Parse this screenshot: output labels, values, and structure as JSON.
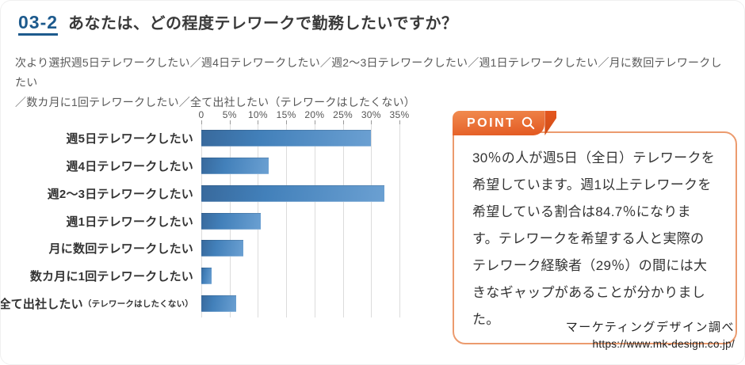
{
  "header": {
    "number_label": "03-2",
    "title": "あなたは、どの程度テレワークで勤務したいですか？",
    "subtitle_lines": [
      "次より選択週5日テレワークしたい／週4日テレワークしたい／週2〜3日テレワークしたい／週1日テレワークしたい／月に数回テレワークしたい",
      "／数カ月に1回テレワークしたい／全て出社したい（テレワークはしたくない）"
    ]
  },
  "chart_data": {
    "type": "bar",
    "orientation": "horizontal",
    "categories": [
      "週5日テレワークしたい",
      "週4日テレワークしたい",
      "週2〜3日テレワークしたい",
      "週1日テレワークしたい",
      "月に数回テレワークしたい",
      "数カ月に1回テレワークしたい",
      "全て出社したい（テレワークはしたくない）"
    ],
    "category_labels": [
      "週5日テレワークしたい",
      "週4日テレワークしたい",
      "週2〜3日テレワークしたい",
      "週1日テレワークしたい",
      "月に数回テレワークしたい",
      "数カ月に1回テレワークしたい",
      "全て出社したい"
    ],
    "last_category_note": "（テレワークはしたくない）",
    "values": [
      30.0,
      11.9,
      32.3,
      10.5,
      7.4,
      1.8,
      6.1
    ],
    "x_ticks": [
      "0",
      "5%",
      "10%",
      "15%",
      "20%",
      "25%",
      "30%",
      "35%"
    ],
    "xlim": [
      0,
      35
    ],
    "grid": true,
    "bar_color_start": "#38699c",
    "bar_color_end": "#6ba0d2",
    "title": "",
    "xlabel": "",
    "ylabel": ""
  },
  "point": {
    "label": "POINT",
    "icon": "magnifier-icon",
    "lines": [
      "30％の人が週5日（全日）テレワークを",
      "希望しています。週1以上テレワークを",
      "希望している割合は84.7％になりま",
      "す。テレワークを希望する人と実際の",
      "テレワーク経験者（29％）の間には大",
      "きなギャップがあることが分かりました。"
    ]
  },
  "source": {
    "credit": "マーケティングデザイン調べ",
    "url": "https://www.mk-design.co.jp/"
  },
  "colors": {
    "accent_blue": "#1d5a8d",
    "bar_blue": "#4280ba",
    "ribbon_orange": "#e45c24",
    "box_border_orange": "#ec9b6e",
    "gridline": "#dcdcdc",
    "text_dark": "#333333",
    "text_muted": "#595959"
  }
}
